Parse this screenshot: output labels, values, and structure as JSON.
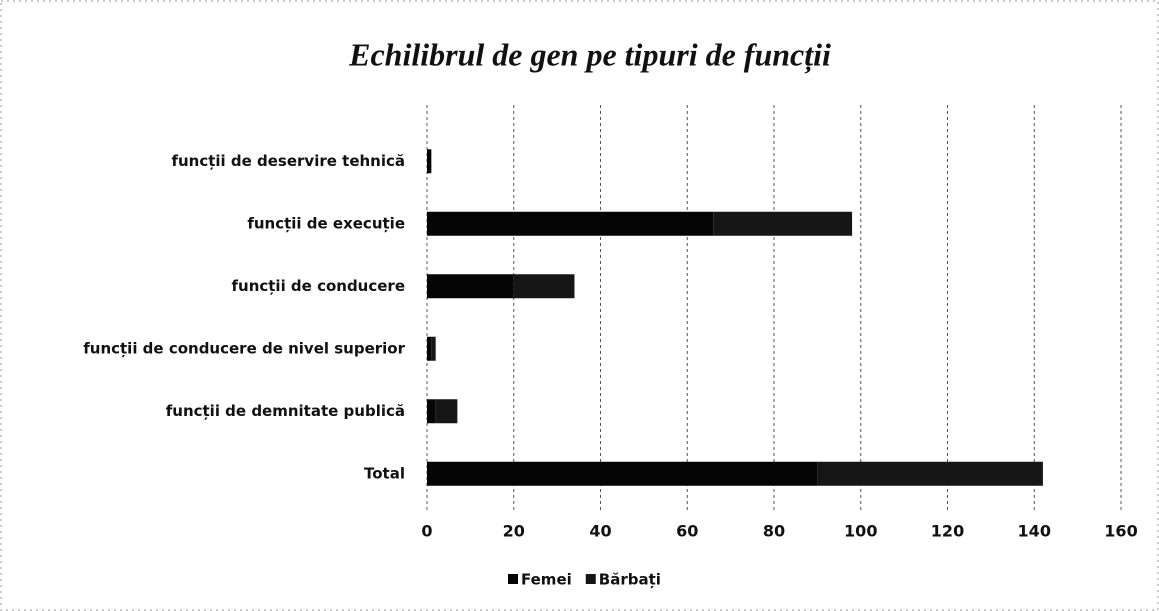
{
  "chart_data": {
    "type": "stacked-barh",
    "title": "Echilibrul de gen pe tipuri de funcții",
    "categories": [
      "funcții de deservire tehnică",
      "funcții de execuție",
      "funcții de conducere",
      "funcții de conducere de nivel superior",
      "funcții de demnitate publică",
      "Total"
    ],
    "series": [
      {
        "name": "Femei",
        "color": "#050505",
        "values": [
          1,
          66,
          20,
          1,
          2,
          90
        ]
      },
      {
        "name": "Bărbați",
        "color": "#161616",
        "values": [
          0,
          32,
          14,
          1,
          5,
          52
        ]
      }
    ],
    "xlim": [
      0,
      160
    ],
    "xticks": [
      0,
      20,
      40,
      60,
      80,
      100,
      120,
      140,
      160
    ],
    "grid": true,
    "legend": "bottom"
  }
}
